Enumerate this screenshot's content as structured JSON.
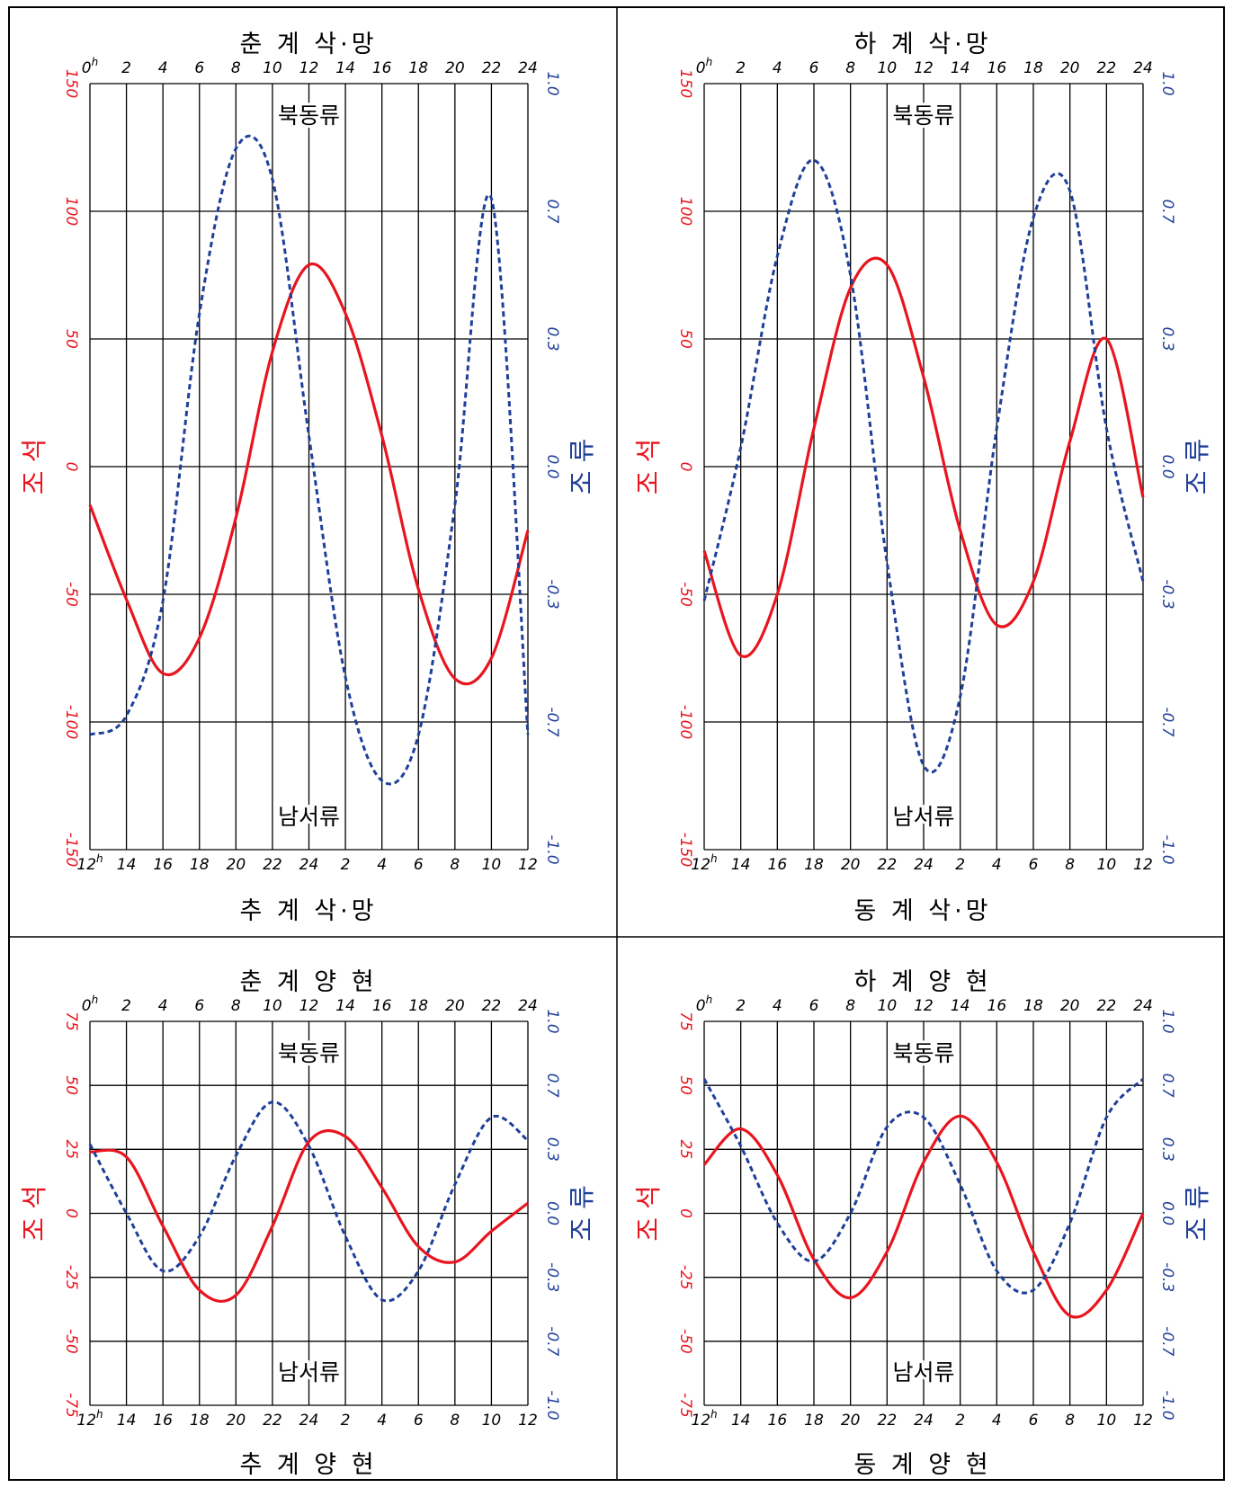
{
  "colors": {
    "tide": "#e8151f",
    "current": "#1f3f99",
    "grid": "#000000"
  },
  "labels": {
    "tide_axis": "조 석",
    "current_axis": "조 류",
    "northeast": "북동류",
    "southwest": "남서류",
    "top_hour_suffix": "h",
    "bottom_hour_suffix": "h"
  },
  "chart_data": [
    {
      "type": "line",
      "top_title": "춘 계 삭·망",
      "bottom_title": "추 계 삭·망",
      "x_top_ticks": [
        "0",
        "2",
        "4",
        "6",
        "8",
        "10",
        "12",
        "14",
        "16",
        "18",
        "20",
        "22",
        "24"
      ],
      "x_bottom_ticks": [
        "12",
        "14",
        "16",
        "18",
        "20",
        "22",
        "24",
        "2",
        "4",
        "6",
        "8",
        "10",
        "12"
      ],
      "y_left_ticks": [
        "150",
        "100",
        "50",
        "0",
        "-50",
        "-100",
        "-150"
      ],
      "y_right_ticks": [
        "1.0",
        "0.7",
        "0.3",
        "0.0",
        "-0.3",
        "-0.7",
        "-1.0"
      ],
      "ylim_tide": [
        -150,
        150
      ],
      "ylim_current": [
        -1.0,
        1.0
      ],
      "x": [
        0,
        2,
        4,
        6,
        8,
        10,
        12,
        14,
        16,
        18,
        20,
        22,
        24
      ],
      "series": [
        {
          "key": "tide",
          "values": [
            -15,
            -52,
            -81,
            -67,
            -20,
            45,
            79,
            60,
            12,
            -48,
            -83,
            -75,
            -25
          ]
        },
        {
          "key": "current",
          "values": [
            -0.7,
            -0.65,
            -0.35,
            0.4,
            0.83,
            0.75,
            0.08,
            -0.55,
            -0.82,
            -0.7,
            -0.1,
            0.7,
            -0.7
          ]
        }
      ]
    },
    {
      "type": "line",
      "top_title": "하 계 삭·망",
      "bottom_title": "동 계 삭·망",
      "x_top_ticks": [
        "0",
        "2",
        "4",
        "6",
        "8",
        "10",
        "12",
        "14",
        "16",
        "18",
        "20",
        "22",
        "24"
      ],
      "x_bottom_ticks": [
        "12",
        "14",
        "16",
        "18",
        "20",
        "22",
        "24",
        "2",
        "4",
        "6",
        "8",
        "10",
        "12"
      ],
      "y_left_ticks": [
        "150",
        "100",
        "50",
        "0",
        "-50",
        "-100",
        "-150"
      ],
      "y_right_ticks": [
        "1.0",
        "0.7",
        "0.3",
        "0.0",
        "-0.3",
        "-0.7",
        "-1.0"
      ],
      "ylim_tide": [
        -150,
        150
      ],
      "ylim_current": [
        -1.0,
        1.0
      ],
      "x": [
        0,
        2,
        4,
        6,
        8,
        10,
        12,
        14,
        16,
        18,
        20,
        22,
        24
      ],
      "series": [
        {
          "key": "tide",
          "values": [
            -33,
            -74,
            -50,
            15,
            70,
            79,
            35,
            -25,
            -62,
            -45,
            10,
            50,
            -12
          ]
        },
        {
          "key": "current",
          "values": [
            -0.35,
            0.05,
            0.55,
            0.8,
            0.5,
            -0.25,
            -0.78,
            -0.6,
            0.1,
            0.65,
            0.72,
            0.1,
            -0.3
          ]
        }
      ]
    },
    {
      "type": "line",
      "top_title": "춘 계 양 현",
      "bottom_title": "추 계 양 현",
      "x_top_ticks": [
        "0",
        "2",
        "4",
        "6",
        "8",
        "10",
        "12",
        "14",
        "16",
        "18",
        "20",
        "22",
        "24"
      ],
      "x_bottom_ticks": [
        "12",
        "14",
        "16",
        "18",
        "20",
        "22",
        "24",
        "2",
        "4",
        "6",
        "8",
        "10",
        "12"
      ],
      "y_left_ticks": [
        "75",
        "50",
        "25",
        "0",
        "-25",
        "-50",
        "-75"
      ],
      "y_right_ticks": [
        "1.0",
        "0.7",
        "0.3",
        "0.0",
        "-0.3",
        "-0.7",
        "-1.0"
      ],
      "ylim_tide": [
        -75,
        75
      ],
      "ylim_current": [
        -1.0,
        1.0
      ],
      "x": [
        0,
        2,
        4,
        6,
        8,
        10,
        12,
        14,
        16,
        18,
        20,
        22,
        24
      ],
      "series": [
        {
          "key": "tide",
          "values": [
            24,
            22,
            -5,
            -30,
            -32,
            -5,
            28,
            30,
            10,
            -13,
            -19,
            -7,
            4
          ]
        },
        {
          "key": "current",
          "values": [
            0.36,
            0.0,
            -0.3,
            -0.12,
            0.3,
            0.58,
            0.35,
            -0.12,
            -0.45,
            -0.3,
            0.15,
            0.5,
            0.38
          ]
        }
      ]
    },
    {
      "type": "line",
      "top_title": "하 계 양 현",
      "bottom_title": "동 계 양 현",
      "x_top_ticks": [
        "0",
        "2",
        "4",
        "6",
        "8",
        "10",
        "12",
        "14",
        "16",
        "18",
        "20",
        "22",
        "24"
      ],
      "x_bottom_ticks": [
        "12",
        "14",
        "16",
        "18",
        "20",
        "22",
        "24",
        "2",
        "4",
        "6",
        "8",
        "10",
        "12"
      ],
      "y_left_ticks": [
        "75",
        "50",
        "25",
        "0",
        "-25",
        "-50",
        "-75"
      ],
      "y_right_ticks": [
        "1.0",
        "0.7",
        "0.3",
        "0.0",
        "-0.3",
        "-0.7",
        "-1.0"
      ],
      "ylim_tide": [
        -75,
        75
      ],
      "ylim_current": [
        -1.0,
        1.0
      ],
      "x": [
        0,
        2,
        4,
        6,
        8,
        10,
        12,
        14,
        16,
        18,
        20,
        22,
        24
      ],
      "series": [
        {
          "key": "tide",
          "values": [
            19,
            33,
            15,
            -18,
            -33,
            -15,
            20,
            38,
            20,
            -15,
            -40,
            -30,
            0
          ]
        },
        {
          "key": "current",
          "values": [
            0.7,
            0.35,
            -0.05,
            -0.25,
            0.0,
            0.45,
            0.5,
            0.15,
            -0.3,
            -0.4,
            -0.05,
            0.5,
            0.7
          ]
        }
      ]
    }
  ]
}
